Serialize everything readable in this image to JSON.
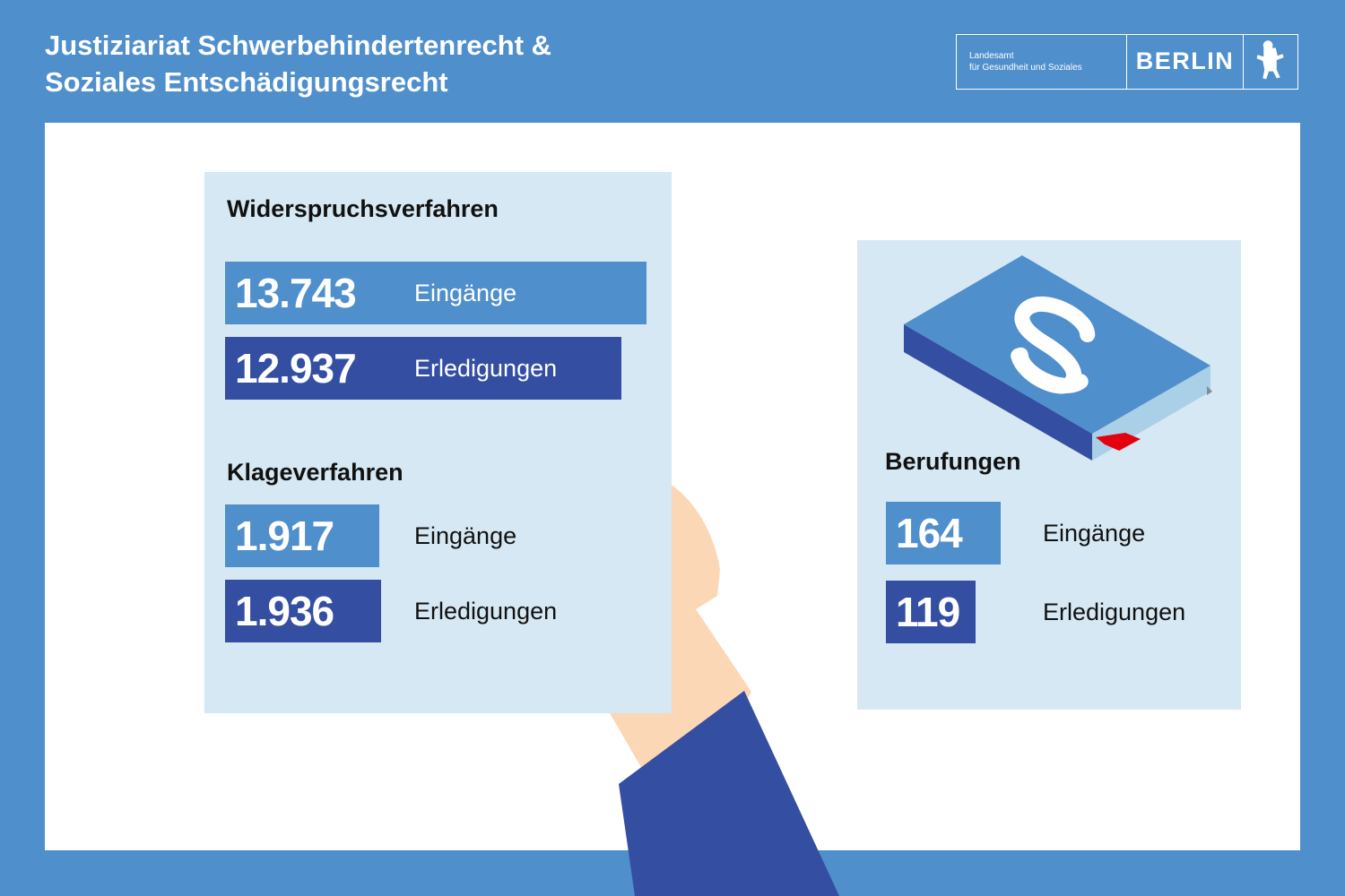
{
  "header": {
    "title_line1": "Justiziariat Schwerbehindertenrecht &",
    "title_line2": "Soziales Entschädigungsrecht"
  },
  "logo": {
    "agency_line1": "Landesamt",
    "agency_line2": "für Gesundheit und Soziales",
    "city": "BERLIN",
    "emblem": "berlin-bear-icon"
  },
  "colors": {
    "background": "#4f8fcc",
    "card": "#d6e8f3",
    "eingaenge_bar": "#4f8fcc",
    "erledigungen_bar": "#344ea2",
    "sleeve": "#344ea2",
    "hand": "#fcd7b5",
    "bookmark": "#e3000f"
  },
  "illustration": {
    "book_icon": "law-book-paragraph-icon",
    "hand_icon": "hand-holding-paper-icon"
  },
  "chart_data": [
    {
      "type": "bar",
      "title": "Widerspruchsverfahren",
      "categories": [
        "Eingänge",
        "Erledigungen"
      ],
      "values": [
        13743,
        12937
      ],
      "value_labels": [
        "13.743",
        "12.937"
      ]
    },
    {
      "type": "bar",
      "title": "Klageverfahren",
      "categories": [
        "Eingänge",
        "Erledigungen"
      ],
      "values": [
        1917,
        1936
      ],
      "value_labels": [
        "1.917",
        "1.936"
      ]
    },
    {
      "type": "bar",
      "title": "Berufungen",
      "categories": [
        "Eingänge",
        "Erledigungen"
      ],
      "values": [
        164,
        119
      ],
      "value_labels": [
        "164",
        "119"
      ]
    }
  ]
}
